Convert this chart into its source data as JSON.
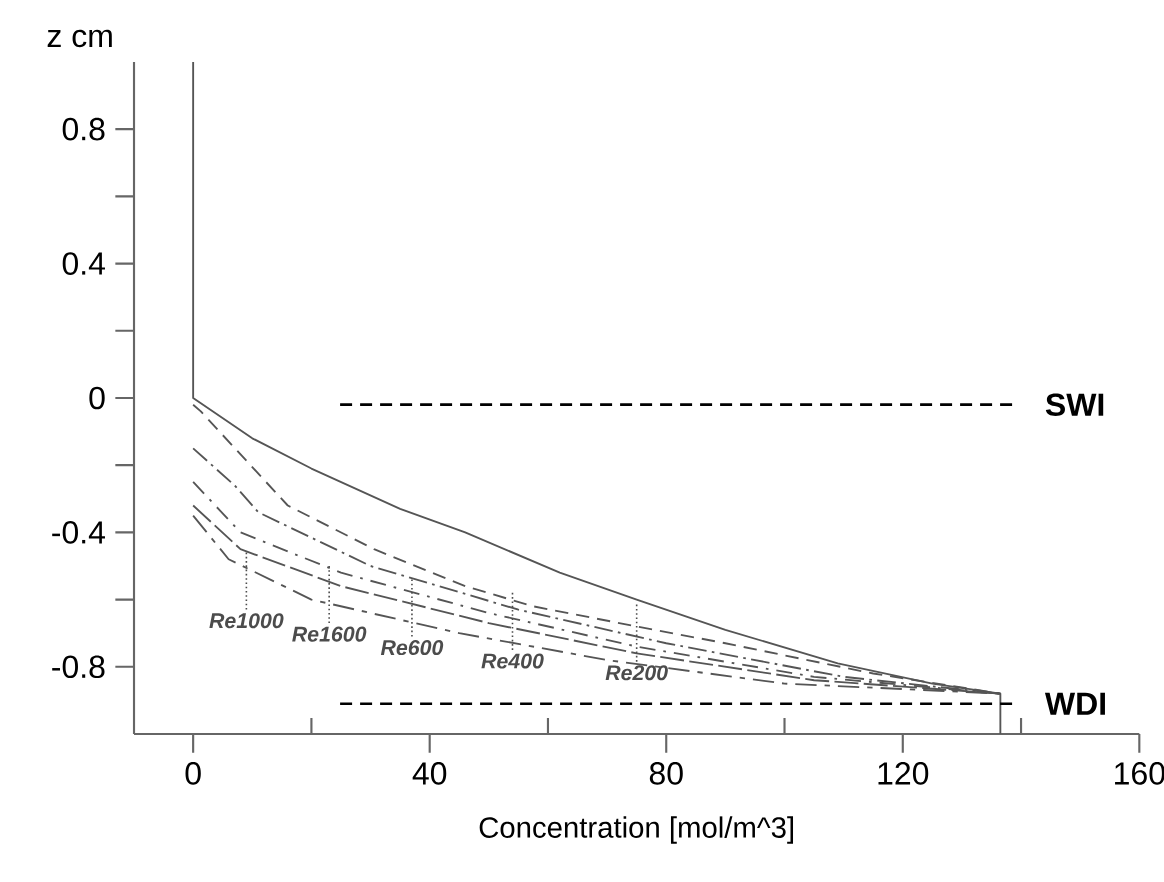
{
  "chart_data": {
    "type": "line",
    "xlabel": "Concentration [mol/m^3]",
    "ylabel": "z cm",
    "xlim": [
      -10,
      160
    ],
    "ylim": [
      -1,
      1
    ],
    "xticks": [
      0,
      {
        "value": 20,
        "label": null
      },
      40,
      {
        "value": 60,
        "label": null
      },
      80,
      {
        "value": 100,
        "label": null
      },
      120,
      {
        "value": 140,
        "label": null
      },
      160
    ],
    "yticks": [
      -0.8,
      {
        "value": -0.6,
        "label": null
      },
      -0.4,
      {
        "value": -0.2,
        "label": null
      },
      0,
      {
        "value": 0.2,
        "label": null
      },
      0.4,
      {
        "value": 0.6,
        "label": null
      },
      0.8
    ],
    "series": [
      {
        "color": "#555555",
        "line_style": "solid",
        "x": [
          0,
          0,
          5,
          10,
          20,
          35,
          46,
          62,
          75,
          90,
          109,
          125,
          136.5,
          136.5
        ],
        "values": [
          1,
          0,
          -0.06,
          -0.12,
          -0.21,
          -0.33,
          -0.4,
          -0.52,
          -0.6,
          -0.69,
          -0.79,
          -0.85,
          -0.88,
          -1
        ]
      },
      {
        "color": "#555555",
        "line_style": "dashed",
        "x": [
          0,
          1.3,
          16,
          30.6,
          46,
          57.5,
          75,
          90,
          115,
          136.5
        ],
        "values": [
          -0.02,
          -0.04,
          -0.32,
          -0.45,
          -0.56,
          -0.62,
          -0.68,
          -0.73,
          -0.82,
          -0.88
        ]
      },
      {
        "color": "#555555",
        "line_style": "dashed",
        "x": [
          0,
          7,
          11,
          30,
          55,
          80,
          110,
          136.5
        ],
        "values": [
          -0.15,
          -0.26,
          -0.34,
          -0.5,
          -0.63,
          -0.73,
          -0.83,
          -0.88
        ]
      },
      {
        "color": "#555555",
        "line_style": "dashed",
        "x": [
          0,
          8,
          25,
          50,
          75,
          105,
          136.5
        ],
        "values": [
          -0.25,
          -0.4,
          -0.52,
          -0.64,
          -0.74,
          -0.83,
          -0.88
        ]
      },
      {
        "color": "#555555",
        "line_style": "dashed",
        "x": [
          0,
          8,
          25,
          50,
          75,
          105,
          136.5
        ],
        "values": [
          -0.32,
          -0.45,
          -0.56,
          -0.67,
          -0.76,
          -0.84,
          -0.88
        ]
      },
      {
        "color": "#555555",
        "line_style": "dashed",
        "x": [
          0,
          6,
          20,
          45,
          70,
          100,
          136.5
        ],
        "values": [
          -0.35,
          -0.48,
          -0.6,
          -0.7,
          -0.78,
          -0.85,
          -0.88
        ]
      }
    ],
    "ref_lines": [
      {
        "axis": "y",
        "value": -0.02,
        "label": "SWI",
        "color": "#000000",
        "line_style": "dashed"
      },
      {
        "axis": "y",
        "value": -0.91,
        "label": "WDI",
        "color": "#000000",
        "line_style": "dashed"
      }
    ],
    "annotations": [
      {
        "text": "Re1000",
        "x": 9,
        "y": -0.46
      },
      {
        "text": "Re1600",
        "x": 23,
        "y": -0.5
      },
      {
        "text": "Re600",
        "x": 37,
        "y": -0.54
      },
      {
        "text": "Re400",
        "x": 54,
        "y": -0.58
      },
      {
        "text": "Re200",
        "x": 75,
        "y": -0.615
      }
    ]
  }
}
